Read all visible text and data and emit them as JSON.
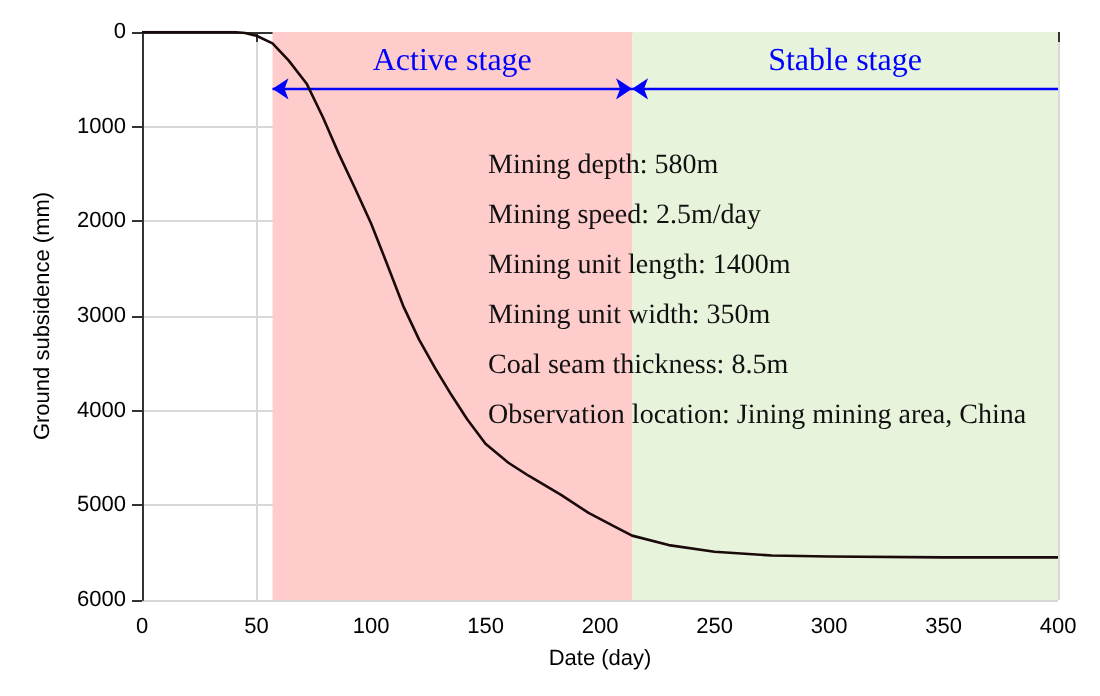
{
  "chart_data": {
    "type": "line",
    "xlabel": "Date (day)",
    "ylabel": "Ground subsidence (mm)",
    "x": [
      0,
      20,
      40,
      45,
      50,
      57,
      64,
      72,
      79,
      86,
      93,
      100,
      107,
      114,
      121,
      128,
      135,
      142,
      150,
      160,
      169,
      183,
      195,
      206,
      214,
      230,
      250,
      275,
      300,
      350,
      400
    ],
    "series": [
      {
        "color": "#1a0a0a",
        "values": [
          0,
          0,
          0,
          10,
          40,
          120,
          300,
          550,
          900,
          1290,
          1650,
          2020,
          2450,
          2890,
          3250,
          3550,
          3830,
          4090,
          4350,
          4550,
          4690,
          4890,
          5080,
          5220,
          5320,
          5420,
          5490,
          5530,
          5540,
          5550,
          5550
        ]
      }
    ],
    "xlim": [
      0,
      400
    ],
    "xticks": [
      0,
      50,
      100,
      150,
      200,
      250,
      300,
      350,
      400
    ],
    "ylim": [
      6000,
      0
    ],
    "yticks": [
      0,
      1000,
      2000,
      3000,
      4000,
      5000,
      6000
    ],
    "grid": true,
    "marker": "none",
    "line_style": "solid",
    "bands": [
      {
        "axis": "x",
        "from": 57,
        "to": 214,
        "color": "#ffcccc",
        "label": "Active stage"
      },
      {
        "axis": "x",
        "from": 214,
        "to": 400,
        "color": "#e8f3dc",
        "label": "Stable stage"
      }
    ],
    "annotations": [
      "Mining depth: 580m",
      "Mining speed: 2.5m/day",
      "Mining unit length: 1400m",
      "Mining unit width: 350m",
      "Coal seam thickness: 8.5m",
      "Observation location: Jining mining area, China"
    ]
  }
}
